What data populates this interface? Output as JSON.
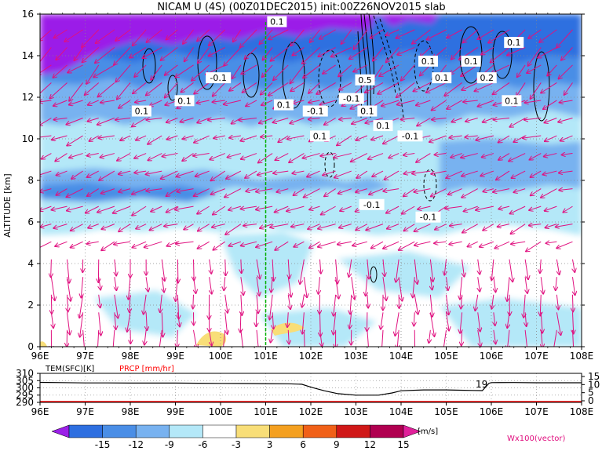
{
  "title": "NICAM U (4S) (00Z01DEC2015) init:00Z26NOV2015 slab",
  "colors": {
    "vector": "#e0107f",
    "contour": "#000000",
    "marker_line": "#00b000",
    "temp_line": "#000000",
    "prcp_line": "#ff0000",
    "frame": "#000000"
  },
  "chart_data": [
    {
      "type": "heatmap",
      "title": "NICAM U (4S) (00Z01DEC2015) init:00Z26NOV2015 slab",
      "ylabel": "ALTITUDE [km]",
      "xlim": [
        96,
        108
      ],
      "ylim": [
        0,
        16
      ],
      "x_ticks": [
        "96E",
        "97E",
        "98E",
        "99E",
        "100E",
        "101E",
        "102E",
        "103E",
        "104E",
        "105E",
        "106E",
        "107E",
        "108E"
      ],
      "y_ticks": [
        "0",
        "2",
        "4",
        "6",
        "8",
        "10",
        "12",
        "14",
        "16"
      ],
      "grid": true,
      "colorbar": {
        "levels": [
          "-15",
          "-12",
          "-9",
          "-6",
          "-3",
          "3",
          "6",
          "9",
          "12",
          "15"
        ],
        "unit": "[m/s]",
        "colors": [
          "#9b1fe8",
          "#2e6fe0",
          "#4a8ee6",
          "#78b2f0",
          "#b4e8f8",
          "#ffffff",
          "#f8de78",
          "#f4a020",
          "#f06018",
          "#d01818",
          "#b00050",
          "#e0209a"
        ]
      },
      "vector_label": "Wx100(vector)",
      "marker_longitude": 101,
      "contour_labels": [
        {
          "text": "0.1",
          "x": 101.25,
          "y": 15.6
        },
        {
          "text": "0.1",
          "x": 106.5,
          "y": 14.6
        },
        {
          "text": "0.1",
          "x": 104.6,
          "y": 13.7
        },
        {
          "text": "0.1",
          "x": 105.55,
          "y": 13.7
        },
        {
          "text": "0.1",
          "x": 104.9,
          "y": 12.9
        },
        {
          "text": "0.2",
          "x": 105.9,
          "y": 12.9
        },
        {
          "text": "-0.1",
          "x": 99.95,
          "y": 12.9
        },
        {
          "text": "0.5",
          "x": 103.2,
          "y": 12.8
        },
        {
          "text": "0.1",
          "x": 99.2,
          "y": 11.8
        },
        {
          "text": "0.1",
          "x": 106.45,
          "y": 11.8
        },
        {
          "text": "0.1",
          "x": 98.25,
          "y": 11.3
        },
        {
          "text": "-0.1",
          "x": 102.9,
          "y": 11.9
        },
        {
          "text": "0.1",
          "x": 101.4,
          "y": 11.6
        },
        {
          "text": "-0.1",
          "x": 102.1,
          "y": 11.3
        },
        {
          "text": "0.1",
          "x": 103.25,
          "y": 11.3
        },
        {
          "text": "0.1",
          "x": 103.6,
          "y": 10.6
        },
        {
          "text": "-0.1",
          "x": 104.2,
          "y": 10.1
        },
        {
          "text": "0.1",
          "x": 102.2,
          "y": 10.1
        },
        {
          "text": "-0.1",
          "x": 103.35,
          "y": 6.8
        },
        {
          "text": "-0.1",
          "x": 104.6,
          "y": 6.2
        }
      ]
    },
    {
      "type": "line",
      "xlim": [
        96,
        108
      ],
      "x_ticks": [
        "96E",
        "97E",
        "98E",
        "99E",
        "100E",
        "101E",
        "102E",
        "103E",
        "104E",
        "105E",
        "106E",
        "107E",
        "108E"
      ],
      "left_label": "TEM(SFC)[K]",
      "right_label": "PRCP [mm/hr]",
      "left_ticks": [
        "310",
        "305",
        "300",
        "295",
        "290"
      ],
      "right_ticks": [
        "15",
        "10",
        "5",
        "0"
      ],
      "series": [
        {
          "name": "TEM(SFC)[K]",
          "x": [
            96.0,
            96.5,
            97.0,
            97.5,
            98.0,
            98.5,
            99.0,
            99.5,
            100.0,
            100.5,
            101.0,
            101.5,
            101.8,
            102.0,
            102.3,
            102.6,
            103.0,
            103.5,
            103.8,
            104.0,
            104.5,
            105.0,
            105.3,
            105.6,
            105.8,
            105.95,
            106.0,
            106.5,
            107.0,
            107.5,
            108.0
          ],
          "values": [
            303.8,
            303.6,
            303.4,
            303.4,
            303.3,
            303.3,
            303.3,
            303.2,
            303.1,
            303.0,
            302.9,
            302.8,
            302.5,
            300.5,
            298.0,
            296.0,
            295.0,
            295.0,
            296.5,
            298.0,
            298.6,
            298.6,
            298.4,
            298.2,
            298.1,
            303.2,
            303.6,
            303.7,
            303.5,
            303.5,
            303.5
          ]
        },
        {
          "name": "PRCP [mm/hr]",
          "x": [
            96,
            108
          ],
          "values": [
            0,
            0
          ]
        }
      ],
      "annotation": "19"
    }
  ]
}
